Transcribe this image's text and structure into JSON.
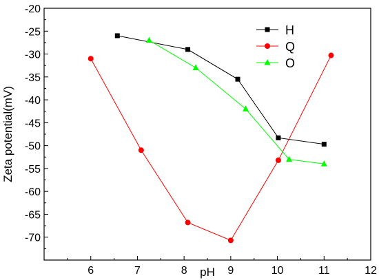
{
  "chart_data": {
    "type": "line",
    "xlabel": "pH",
    "ylabel": "Zeta potential(mV)",
    "xlim": [
      5,
      12
    ],
    "ylim": [
      -75,
      -20
    ],
    "xticks": [
      6,
      7,
      8,
      9,
      10,
      11,
      12
    ],
    "yticks": [
      -20,
      -25,
      -30,
      -35,
      -40,
      -45,
      -50,
      -55,
      -60,
      -65,
      -70
    ],
    "grid": false,
    "legend_position": "top-right",
    "series": [
      {
        "name": "H",
        "color": "#000000",
        "marker": "square",
        "x": [
          6.57,
          8.08,
          9.15,
          10.02,
          11.0
        ],
        "y": [
          -26.0,
          -29.0,
          -35.5,
          -48.3,
          -49.7
        ]
      },
      {
        "name": "Q",
        "color": "#ff0000",
        "marker": "circle",
        "x": [
          6.0,
          7.08,
          8.08,
          9.0,
          10.02,
          11.15
        ],
        "y": [
          -31.0,
          -51.0,
          -66.8,
          -70.7,
          -53.2,
          -30.3
        ]
      },
      {
        "name": "O",
        "color": "#00ff00",
        "marker": "triangle",
        "x": [
          7.25,
          8.25,
          9.32,
          10.25,
          11.0
        ],
        "y": [
          -27.0,
          -33.0,
          -42.0,
          -53.0,
          -54.0
        ]
      }
    ]
  }
}
